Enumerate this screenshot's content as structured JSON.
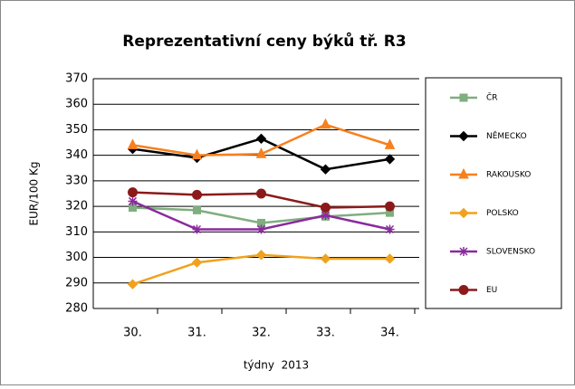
{
  "chart_data": {
    "type": "line",
    "title": "Reprezentativní ceny býků tř. R3",
    "ylabel": "EUR/100 Kg",
    "xlabel": "týdny  2013",
    "categories": [
      "30.",
      "31.",
      "32.",
      "33.",
      "34."
    ],
    "ylim": [
      280,
      370
    ],
    "yticks": [
      280,
      290,
      300,
      310,
      320,
      330,
      340,
      350,
      360,
      370
    ],
    "grid": true,
    "legend": "right",
    "series": [
      {
        "name": "ČR",
        "color": "#7fae7f",
        "marker": "square",
        "values": [
          319.5,
          318.5,
          313.5,
          316,
          317.5
        ]
      },
      {
        "name": "NĚMECKO",
        "color": "#000000",
        "marker": "diamond",
        "values": [
          342.5,
          339,
          346.5,
          334.5,
          338.5
        ]
      },
      {
        "name": "RAKOUSKO",
        "color": "#f7801e",
        "marker": "triangle",
        "values": [
          344,
          340,
          340.5,
          352,
          344
        ]
      },
      {
        "name": "POLSKO",
        "color": "#f0a21e",
        "marker": "diamond",
        "values": [
          289.5,
          298,
          301,
          299.5,
          299.5
        ]
      },
      {
        "name": "SLOVENSKO",
        "color": "#8a2a9e",
        "marker": "star",
        "values": [
          322,
          311,
          311,
          316.5,
          311
        ]
      },
      {
        "name": "EU",
        "color": "#8b1a1a",
        "marker": "circle",
        "values": [
          325.5,
          324.5,
          325,
          319.5,
          320
        ]
      }
    ]
  }
}
